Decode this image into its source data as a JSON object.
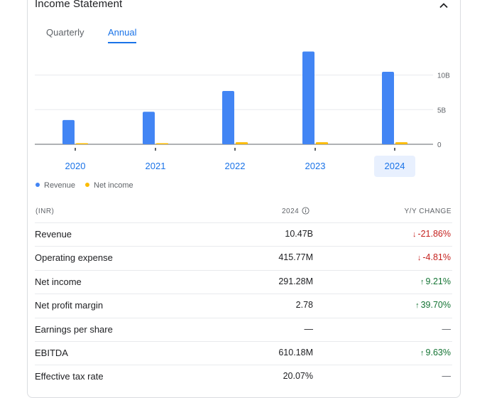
{
  "header": {
    "title": "Income Statement"
  },
  "tabs": [
    {
      "label": "Quarterly",
      "active": false
    },
    {
      "label": "Annual",
      "active": true
    }
  ],
  "chart_data": {
    "type": "bar",
    "categories": [
      "2020",
      "2021",
      "2022",
      "2023",
      "2024"
    ],
    "series": [
      {
        "name": "Revenue",
        "color": "#4285f4",
        "values": [
          3.5,
          4.7,
          7.7,
          13.4,
          10.47
        ]
      },
      {
        "name": "Net income",
        "color": "#fbbc04",
        "values": [
          0.08,
          0.15,
          0.3,
          0.3,
          0.29
        ]
      }
    ],
    "unit": "B",
    "y_ticks": [
      "10B",
      "5B",
      "0"
    ],
    "y_tick_values": [
      10,
      5,
      0
    ],
    "selected_category": "2024"
  },
  "legend": {
    "revenue": "Revenue",
    "net_income": "Net income"
  },
  "table": {
    "col_label": "(INR)",
    "col_period": "2024",
    "col_change": "Y/Y CHANGE",
    "rows": [
      {
        "label": "Revenue",
        "value": "10.47B",
        "change": "-21.86%",
        "dir": "down"
      },
      {
        "label": "Operating expense",
        "value": "415.77M",
        "change": "-4.81%",
        "dir": "down"
      },
      {
        "label": "Net income",
        "value": "291.28M",
        "change": "9.21%",
        "dir": "up"
      },
      {
        "label": "Net profit margin",
        "value": "2.78",
        "change": "39.70%",
        "dir": "up"
      },
      {
        "label": "Earnings per share",
        "value": "—",
        "change": "—",
        "dir": "none"
      },
      {
        "label": "EBITDA",
        "value": "610.18M",
        "change": "9.63%",
        "dir": "up"
      },
      {
        "label": "Effective tax rate",
        "value": "20.07%",
        "change": "—",
        "dir": "none"
      }
    ]
  }
}
